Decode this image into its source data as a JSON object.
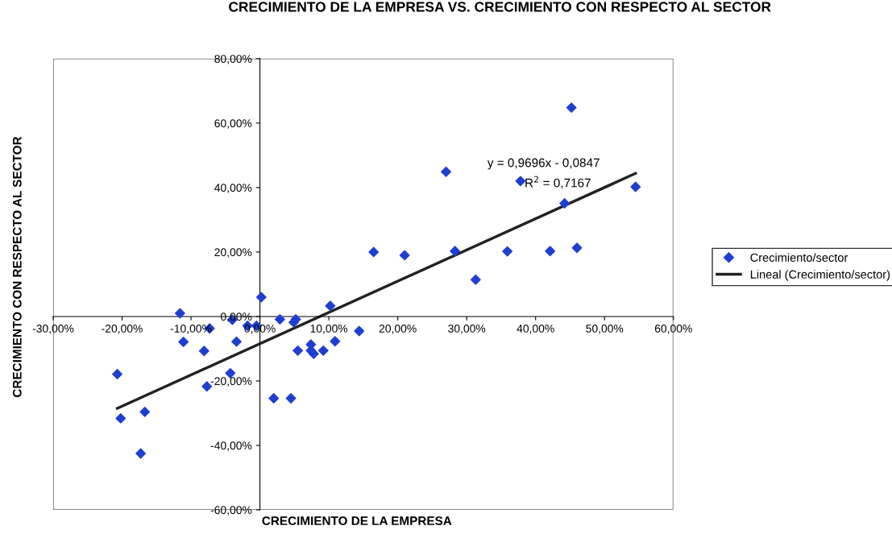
{
  "chart_data": {
    "type": "scatter",
    "title": "CRECIMIENTO DE LA EMPRESA VS. CRECIMIENTO CON RESPECTO AL SECTOR",
    "xlabel": "CRECIMIENTO DE LA EMPRESA",
    "ylabel": "CRECIMIENTO CON RESPECTO AL SECTOR",
    "series": [
      {
        "name": "Crecimiento/sector",
        "color": "#1f3fd0",
        "marker": "diamond",
        "x": [
          -20.7,
          -20.2,
          -16.7,
          -17.3,
          -11.6,
          -11.1,
          -8.1,
          -7.3,
          -7.7,
          -4.0,
          -3.4,
          -4.3,
          -1.8,
          -0.5,
          0.2,
          2.9,
          2.0,
          4.5,
          4.9,
          5.2,
          5.5,
          7.4,
          7.4,
          7.8,
          9.2,
          10.2,
          10.9,
          14.4,
          16.5,
          21.0,
          27.0,
          28.3,
          31.3,
          35.9,
          37.8,
          42.1,
          44.2,
          45.2,
          46.0,
          54.5
        ],
        "values": [
          -17.9,
          -31.6,
          -29.6,
          -42.5,
          1.0,
          -7.9,
          -10.7,
          -3.7,
          -21.7,
          -1.0,
          -7.8,
          -17.6,
          -2.9,
          -2.9,
          6.0,
          -0.9,
          -25.4,
          -25.4,
          -1.8,
          -0.9,
          -10.6,
          -8.7,
          -10.6,
          -11.6,
          -10.6,
          3.3,
          -7.7,
          -4.5,
          20.0,
          19.0,
          44.9,
          20.3,
          11.4,
          20.2,
          42.0,
          20.3,
          35.1,
          64.8,
          21.3,
          40.2
        ]
      },
      {
        "name": "Lineal (Crecimiento/sector)",
        "type": "line",
        "color": "#222222",
        "marker": "none",
        "line_style": "solid",
        "x": [
          -20.7,
          54.5
        ],
        "values": [
          -28.5,
          44.4
        ]
      }
    ],
    "xlim": [
      -30,
      60
    ],
    "ylim": [
      -60,
      80
    ],
    "xticks": [
      {
        "value": -30,
        "label": "-30,00%"
      },
      {
        "value": -20,
        "label": "-20,00%"
      },
      {
        "value": -10,
        "label": "-10,00%"
      },
      {
        "value": 0,
        "label": "0,00%"
      },
      {
        "value": 10,
        "label": "10,00%"
      },
      {
        "value": 20,
        "label": "20,00%"
      },
      {
        "value": 30,
        "label": "30,00%"
      },
      {
        "value": 40,
        "label": "40,00%"
      },
      {
        "value": 50,
        "label": "50,00%"
      },
      {
        "value": 60,
        "label": "60,00%"
      }
    ],
    "yticks": [
      {
        "value": -60,
        "label": "-60,00%"
      },
      {
        "value": -40,
        "label": "-40,00%"
      },
      {
        "value": -20,
        "label": "-20,00%"
      },
      {
        "value": 0,
        "label": "0,00%"
      },
      {
        "value": 20,
        "label": "20,00%"
      },
      {
        "value": 40,
        "label": "40,00%"
      },
      {
        "value": 60,
        "label": "60,00%"
      },
      {
        "value": 80,
        "label": "80,00%"
      }
    ],
    "annotations": [
      "y = 0,9696x - 0,0847",
      "R$^{2}$ = 0,7167"
    ],
    "grid": false,
    "legend": "right"
  }
}
